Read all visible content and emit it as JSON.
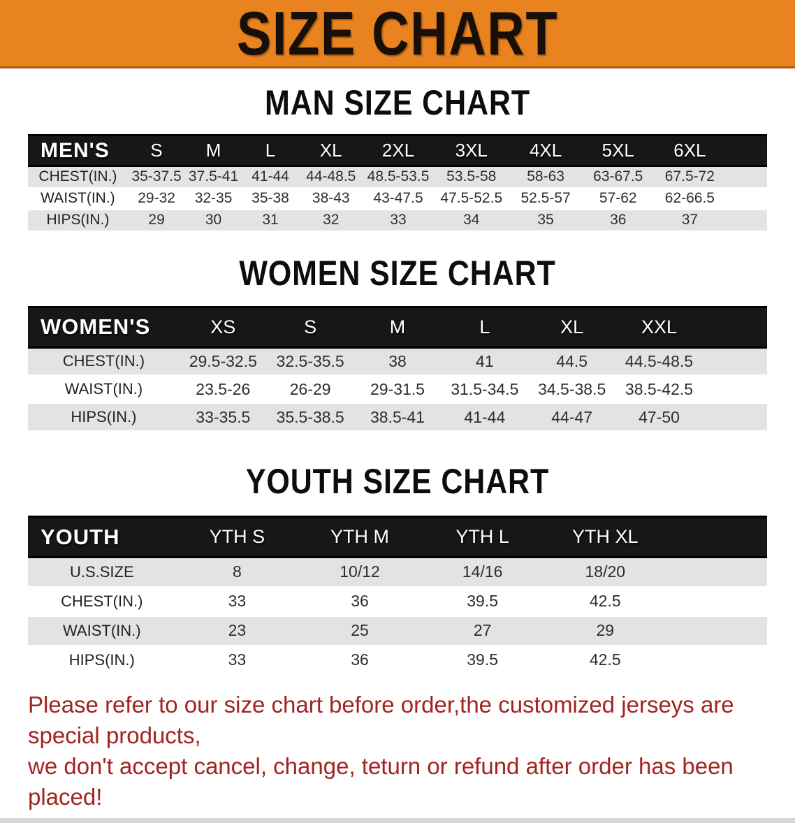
{
  "banner": {
    "title": "SIZE CHART",
    "bg": "#E8831F",
    "text_color": "#181008"
  },
  "colors": {
    "header_bar": "#171717",
    "row_gray": "#E3E3E3",
    "notice_red": "#A3231E",
    "bottom_strip": "#D6D6D6"
  },
  "sections": [
    {
      "id": "men",
      "heading": "MAN SIZE CHART",
      "label": "MEN'S",
      "columns": [
        "S",
        "M",
        "L",
        "XL",
        "2XL",
        "3XL",
        "4XL",
        "5XL",
        "6XL"
      ],
      "rows": [
        {
          "label": "CHEST(IN.)",
          "values": [
            "35-37.5",
            "37.5-41",
            "41-44",
            "44-48.5",
            "48.5-53.5",
            "53.5-58",
            "58-63",
            "63-67.5",
            "67.5-72"
          ]
        },
        {
          "label": "WAIST(IN.)",
          "values": [
            "29-32",
            "32-35",
            "35-38",
            "38-43",
            "43-47.5",
            "47.5-52.5",
            "52.5-57",
            "57-62",
            "62-66.5"
          ]
        },
        {
          "label": "HIPS(IN.)",
          "values": [
            "29",
            "30",
            "31",
            "32",
            "33",
            "34",
            "35",
            "36",
            "37"
          ]
        }
      ]
    },
    {
      "id": "women",
      "heading": "WOMEN SIZE CHART",
      "label": "WOMEN'S",
      "columns": [
        "XS",
        "S",
        "M",
        "L",
        "XL",
        "XXL"
      ],
      "rows": [
        {
          "label": "CHEST(IN.)",
          "values": [
            "29.5-32.5",
            "32.5-35.5",
            "38",
            "41",
            "44.5",
            "44.5-48.5"
          ]
        },
        {
          "label": "WAIST(IN.)",
          "values": [
            "23.5-26",
            "26-29",
            "29-31.5",
            "31.5-34.5",
            "34.5-38.5",
            "38.5-42.5"
          ]
        },
        {
          "label": "HIPS(IN.)",
          "values": [
            "33-35.5",
            "35.5-38.5",
            "38.5-41",
            "41-44",
            "44-47",
            "47-50"
          ]
        }
      ]
    },
    {
      "id": "youth",
      "heading": "YOUTH SIZE CHART",
      "label": "YOUTH",
      "columns": [
        "YTH S",
        "YTH M",
        "YTH L",
        "YTH XL"
      ],
      "rows": [
        {
          "label": "U.S.SIZE",
          "values": [
            "8",
            "10/12",
            "14/16",
            "18/20"
          ]
        },
        {
          "label": "CHEST(IN.)",
          "values": [
            "33",
            "36",
            "39.5",
            "42.5"
          ]
        },
        {
          "label": "WAIST(IN.)",
          "values": [
            "23",
            "25",
            "27",
            "29"
          ]
        },
        {
          "label": "HIPS(IN.)",
          "values": [
            "33",
            "36",
            "39.5",
            "42.5"
          ]
        }
      ]
    }
  ],
  "footer": {
    "line1": "Please refer to our size chart before order,the customized jerseys are special products,",
    "line2": "we don't accept cancel, change, teturn or refund after order has been placed!"
  }
}
